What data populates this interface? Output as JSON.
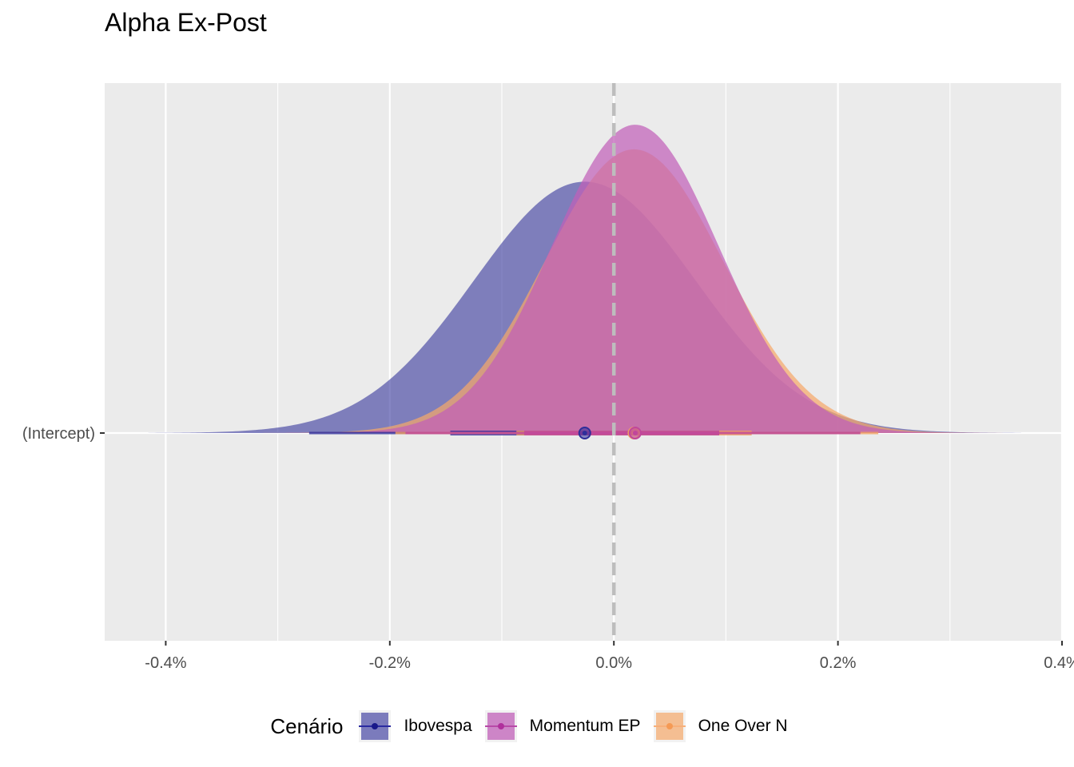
{
  "chart_data": {
    "type": "area",
    "title": "Alpha Ex-Post",
    "xlabel": "",
    "ylabel": "",
    "y_category": "(Intercept)",
    "x_ticks": [
      -0.4,
      -0.2,
      0.0,
      0.2,
      0.4
    ],
    "x_tick_labels": [
      "-0.4%",
      "-0.2%",
      "0.0%",
      "0.2%",
      "0.4%"
    ],
    "xlim": [
      -0.4545,
      0.4
    ],
    "x_range_drawn": [
      -0.4155,
      0.3635
    ],
    "reference_line": 0.0,
    "legend_title": "Cenário",
    "legend_position": "bottom",
    "grid": true,
    "series": [
      {
        "name": "Ibovespa",
        "mean": -0.026,
        "sd": 0.099,
        "relative_peak": 0.715,
        "interval_inner": [
          -0.146,
          0.094
        ],
        "interval_outer": [
          -0.272,
          0.22
        ],
        "color": "#3b3b9e"
      },
      {
        "name": "One Over N",
        "mean": 0.018,
        "sd": 0.0795,
        "relative_peak": 0.807,
        "interval_inner": [
          -0.087,
          0.123
        ],
        "interval_outer": [
          -0.195,
          0.236
        ],
        "color": "#f5a86a"
      },
      {
        "name": "Momentum EP",
        "mean": 0.019,
        "sd": 0.0745,
        "relative_peak": 0.877,
        "interval_inner": [
          -0.08,
          0.094
        ],
        "interval_outer": [
          -0.186,
          0.22
        ],
        "color": "#c060b8"
      }
    ]
  }
}
